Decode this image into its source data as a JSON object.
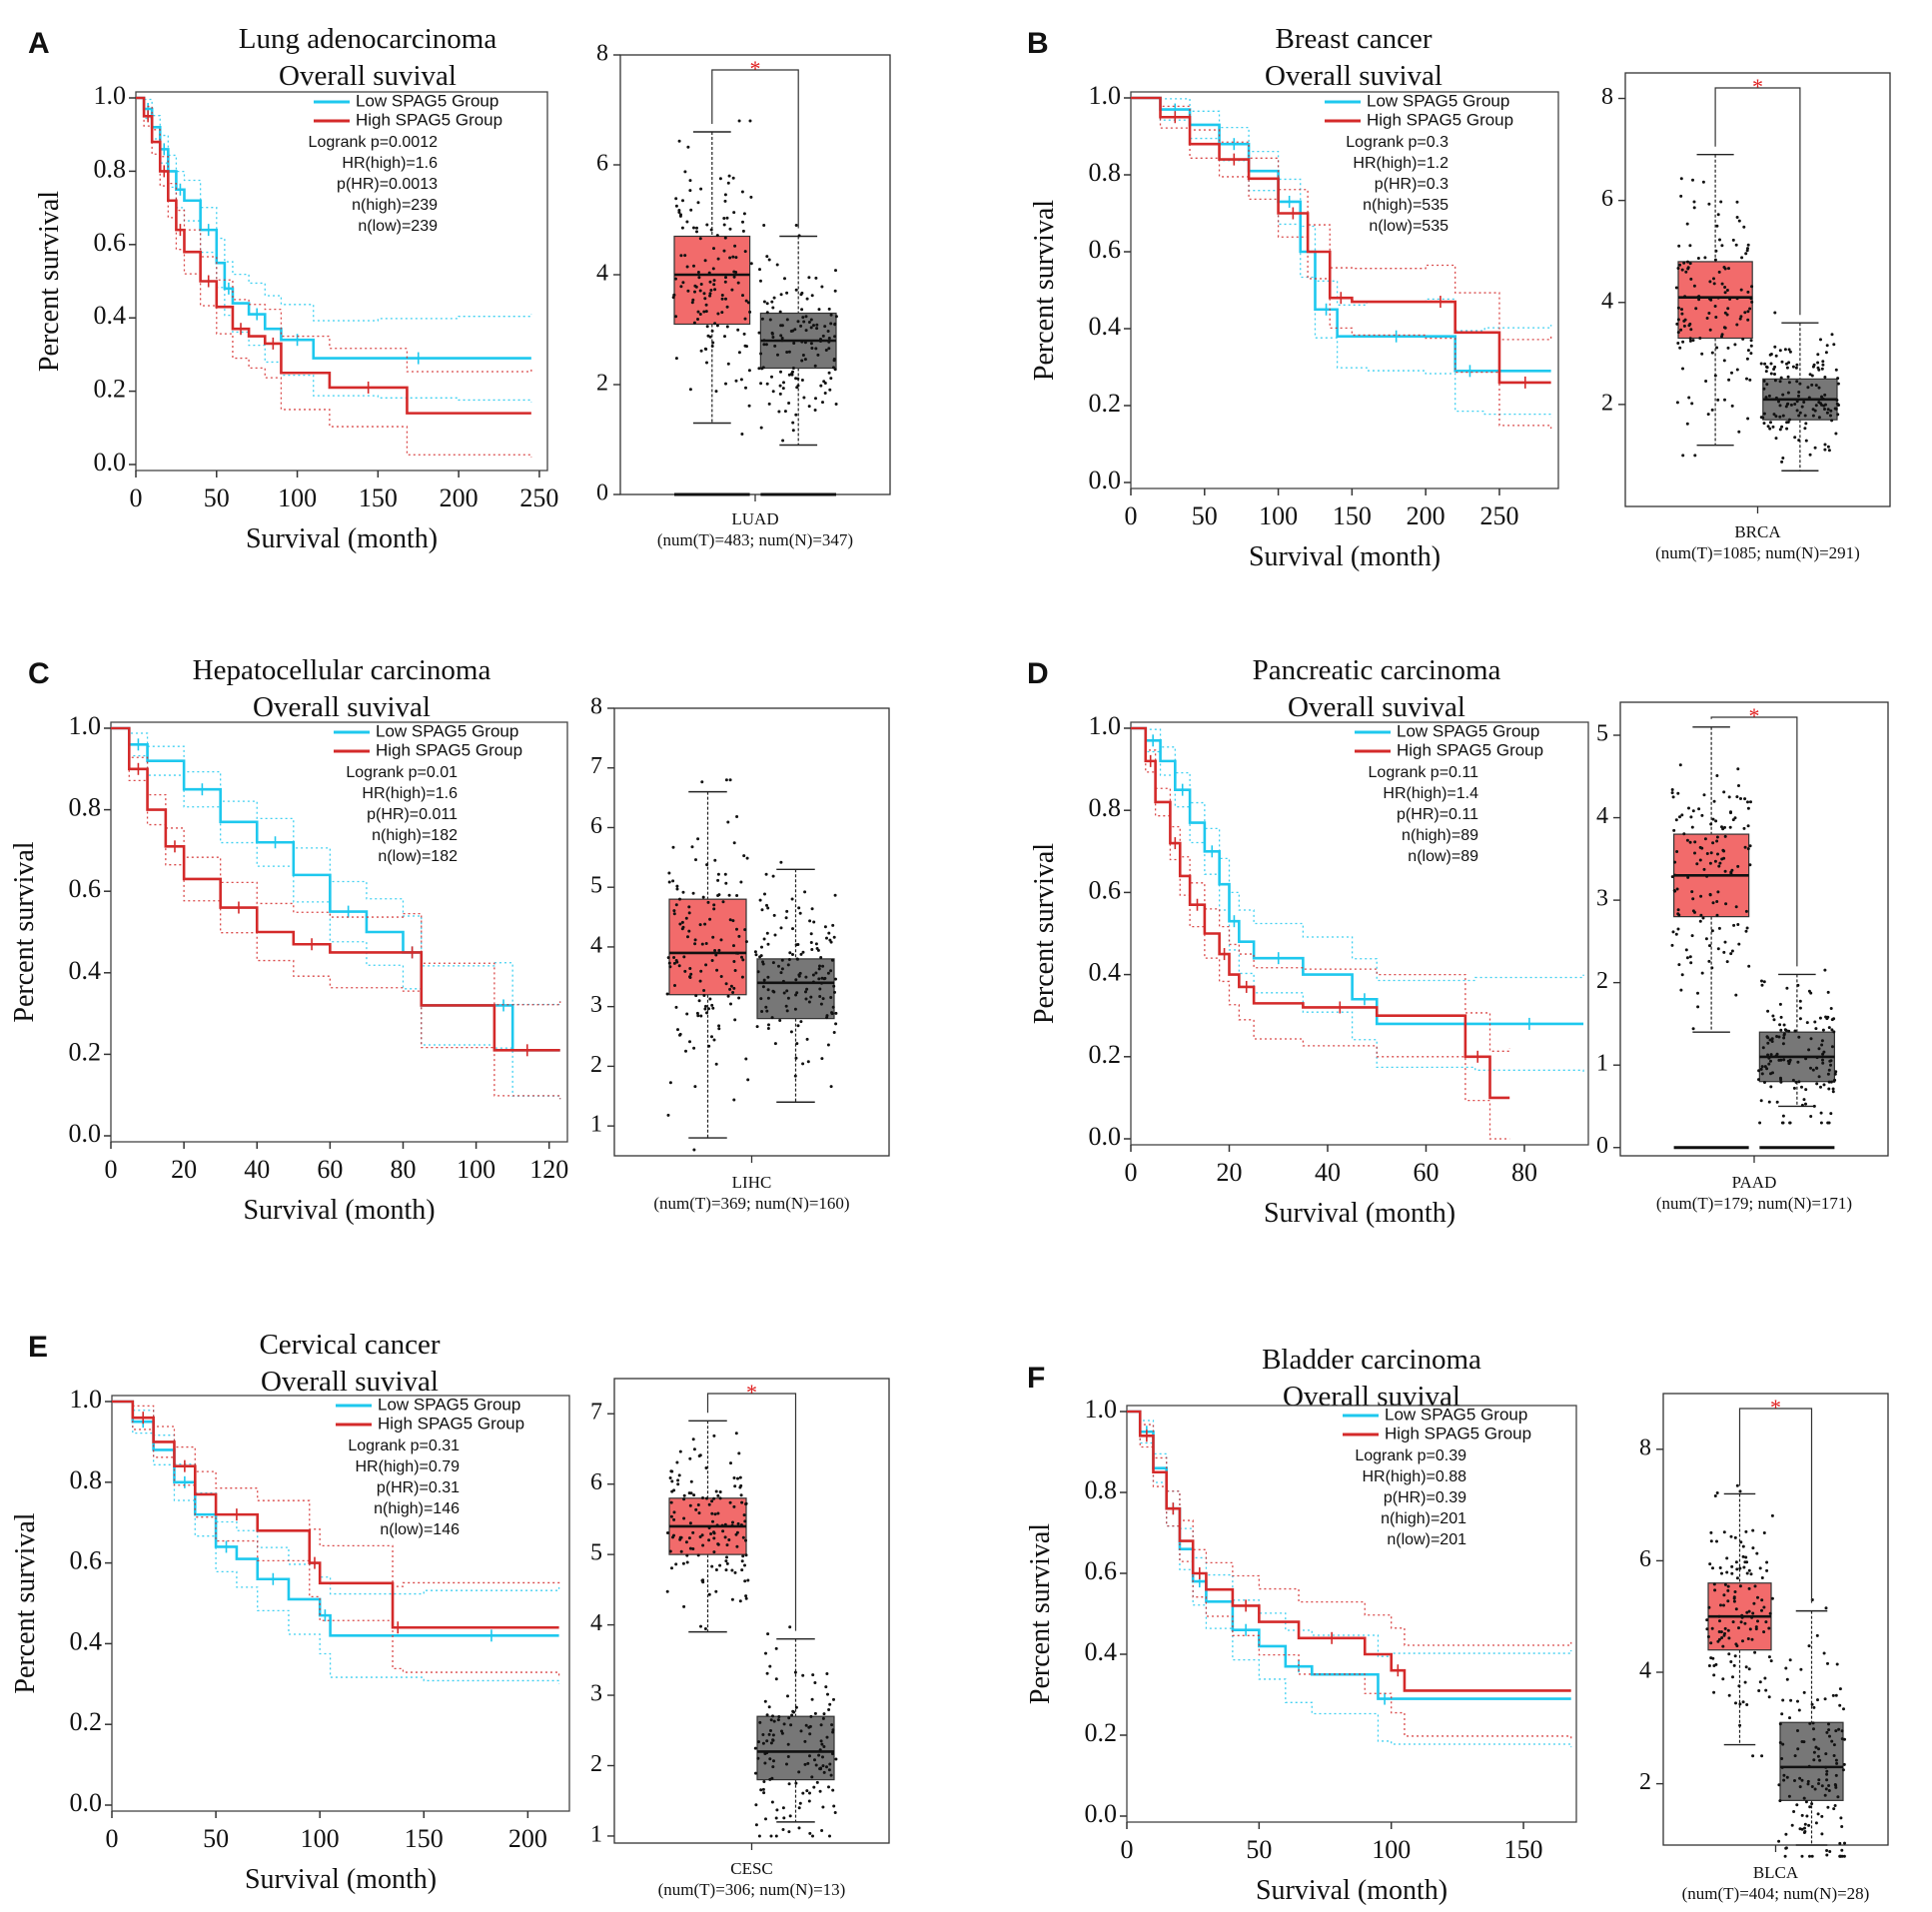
{
  "colors": {
    "low": "#1ec8ee",
    "high": "#d42a2a",
    "tumor_box": "#f26b6b",
    "normal_box": "#777777",
    "star": "#e02020",
    "axis": "#222222"
  },
  "km_labels": {
    "ylabel": "Percent survival",
    "xlabel": "Survival (month)",
    "low_group": "Low SPAG5 Group",
    "high_group": "High SPAG5 Group"
  },
  "chart_data": [
    {
      "panel": "A",
      "type": "line",
      "title_line1": "Lung adenocarcinoma",
      "title_line2": "Overall suvival",
      "xlim": [
        0,
        255
      ],
      "xticks": [
        0,
        50,
        100,
        150,
        200,
        250
      ],
      "ylim": [
        0,
        1.0
      ],
      "yticks": [
        "0.0",
        "0.2",
        "0.4",
        "0.6",
        "0.8",
        "1.0"
      ],
      "stats": [
        "Logrank p=0.0012",
        "HR(high)=1.6",
        "p(HR)=0.0013",
        "n(high)=239",
        "n(low)=239"
      ],
      "series": [
        {
          "group": "low",
          "x": [
            0,
            5,
            10,
            15,
            20,
            25,
            30,
            40,
            50,
            55,
            60,
            70,
            80,
            90,
            110,
            150,
            200,
            245
          ],
          "y": [
            1.0,
            0.97,
            0.92,
            0.86,
            0.8,
            0.75,
            0.72,
            0.64,
            0.55,
            0.48,
            0.44,
            0.41,
            0.37,
            0.34,
            0.29,
            0.29,
            0.29,
            0.29
          ]
        },
        {
          "group": "high",
          "x": [
            0,
            5,
            10,
            15,
            20,
            25,
            30,
            40,
            50,
            60,
            70,
            80,
            90,
            120,
            168,
            245
          ],
          "y": [
            1.0,
            0.95,
            0.88,
            0.8,
            0.72,
            0.64,
            0.58,
            0.5,
            0.43,
            0.37,
            0.35,
            0.33,
            0.25,
            0.21,
            0.14,
            0.14
          ]
        }
      ],
      "box": {
        "cancer": "LUAD",
        "caption": "(num(T)=483; num(N)=347)",
        "ylim": [
          0,
          8
        ],
        "yticks": [
          0,
          2,
          4,
          6,
          8
        ],
        "significant": true,
        "zero_bars": true,
        "tumor": {
          "q1": 3.1,
          "median": 4.0,
          "q3": 4.7,
          "lo": 1.3,
          "hi": 6.6
        },
        "normal": {
          "q1": 2.3,
          "median": 2.8,
          "q3": 3.3,
          "lo": 0.9,
          "hi": 4.7
        }
      }
    },
    {
      "panel": "B",
      "type": "line",
      "title_line1": "Breast cancer",
      "title_line2": "Overall suvival",
      "xlim": [
        0,
        290
      ],
      "xticks": [
        0,
        50,
        100,
        150,
        200,
        250
      ],
      "ylim": [
        0,
        1.0
      ],
      "yticks": [
        "0.0",
        "0.2",
        "0.4",
        "0.6",
        "0.8",
        "1.0"
      ],
      "stats": [
        "Logrank p=0.3",
        "HR(high)=1.2",
        "p(HR)=0.3",
        "n(high)=535",
        "n(low)=535"
      ],
      "series": [
        {
          "group": "low",
          "x": [
            0,
            20,
            40,
            60,
            80,
            100,
            115,
            125,
            140,
            160,
            200,
            220,
            240,
            285
          ],
          "y": [
            1.0,
            0.97,
            0.93,
            0.88,
            0.81,
            0.73,
            0.6,
            0.45,
            0.38,
            0.38,
            0.38,
            0.29,
            0.29,
            0.29
          ]
        },
        {
          "group": "high",
          "x": [
            0,
            20,
            40,
            60,
            80,
            100,
            120,
            135,
            150,
            200,
            220,
            250,
            285
          ],
          "y": [
            1.0,
            0.95,
            0.88,
            0.84,
            0.79,
            0.7,
            0.6,
            0.48,
            0.47,
            0.47,
            0.39,
            0.26,
            0.26
          ]
        }
      ],
      "box": {
        "cancer": "BRCA",
        "caption": "(num(T)=1085; num(N)=291)",
        "ylim": [
          0,
          8.5
        ],
        "yticks": [
          2,
          4,
          6,
          8
        ],
        "significant": true,
        "zero_bars": false,
        "tumor": {
          "q1": 3.3,
          "median": 4.1,
          "q3": 4.8,
          "lo": 1.2,
          "hi": 6.9
        },
        "normal": {
          "q1": 1.7,
          "median": 2.1,
          "q3": 2.5,
          "lo": 0.7,
          "hi": 3.6
        }
      }
    },
    {
      "panel": "C",
      "type": "line",
      "title_line1": "Hepatocellular carcinoma",
      "title_line2": "Overall suvival",
      "xlim": [
        0,
        125
      ],
      "xticks": [
        0,
        20,
        40,
        60,
        80,
        100,
        120
      ],
      "ylim": [
        0,
        1.0
      ],
      "yticks": [
        "0.0",
        "0.2",
        "0.4",
        "0.6",
        "0.8",
        "1.0"
      ],
      "stats": [
        "Logrank p=0.01",
        "HR(high)=1.6",
        "p(HR)=0.011",
        "n(high)=182",
        "n(low)=182"
      ],
      "series": [
        {
          "group": "low",
          "x": [
            0,
            5,
            10,
            20,
            30,
            40,
            50,
            60,
            70,
            80,
            85,
            105,
            110,
            123
          ],
          "y": [
            1.0,
            0.96,
            0.92,
            0.85,
            0.77,
            0.72,
            0.64,
            0.55,
            0.5,
            0.45,
            0.32,
            0.32,
            0.21,
            0.21
          ]
        },
        {
          "group": "high",
          "x": [
            0,
            5,
            10,
            15,
            20,
            30,
            40,
            50,
            60,
            80,
            85,
            105,
            123
          ],
          "y": [
            1.0,
            0.9,
            0.8,
            0.71,
            0.63,
            0.56,
            0.5,
            0.47,
            0.45,
            0.45,
            0.32,
            0.21,
            0.21
          ]
        }
      ],
      "box": {
        "cancer": "LIHC",
        "caption": "(num(T)=369; num(N)=160)",
        "ylim": [
          0.5,
          8
        ],
        "yticks": [
          1,
          2,
          3,
          4,
          5,
          6,
          7,
          8
        ],
        "significant": false,
        "zero_bars": false,
        "tumor": {
          "q1": 3.2,
          "median": 3.9,
          "q3": 4.8,
          "lo": 0.8,
          "hi": 6.6
        },
        "normal": {
          "q1": 2.8,
          "median": 3.4,
          "q3": 3.8,
          "lo": 1.4,
          "hi": 5.3
        }
      }
    },
    {
      "panel": "D",
      "type": "line",
      "title_line1": "Pancreatic carcinoma",
      "title_line2": "Overall suvival",
      "xlim": [
        0,
        93
      ],
      "xticks": [
        0,
        20,
        40,
        60,
        80
      ],
      "ylim": [
        0,
        1.0
      ],
      "yticks": [
        "0.0",
        "0.2",
        "0.4",
        "0.6",
        "0.8",
        "1.0"
      ],
      "stats": [
        "Logrank p=0.11",
        "HR(high)=1.4",
        "p(HR)=0.11",
        "n(high)=89",
        "n(low)=89"
      ],
      "series": [
        {
          "group": "low",
          "x": [
            0,
            3,
            6,
            9,
            12,
            15,
            18,
            20,
            22,
            25,
            35,
            45,
            50,
            70,
            92
          ],
          "y": [
            1.0,
            0.97,
            0.92,
            0.85,
            0.77,
            0.7,
            0.62,
            0.53,
            0.48,
            0.44,
            0.4,
            0.34,
            0.28,
            0.28,
            0.28
          ]
        },
        {
          "group": "high",
          "x": [
            0,
            3,
            5,
            8,
            10,
            12,
            15,
            18,
            20,
            22,
            25,
            35,
            50,
            68,
            73,
            77
          ],
          "y": [
            1.0,
            0.92,
            0.82,
            0.72,
            0.64,
            0.57,
            0.5,
            0.45,
            0.4,
            0.37,
            0.33,
            0.32,
            0.3,
            0.2,
            0.1,
            0.1
          ]
        }
      ],
      "box": {
        "cancer": "PAAD",
        "caption": "(num(T)=179; num(N)=171)",
        "ylim": [
          -0.1,
          5.4
        ],
        "yticks": [
          0,
          1,
          2,
          3,
          4,
          5
        ],
        "significant": true,
        "zero_bars": true,
        "tumor": {
          "q1": 2.8,
          "median": 3.3,
          "q3": 3.8,
          "lo": 1.4,
          "hi": 5.1
        },
        "normal": {
          "q1": 0.8,
          "median": 1.1,
          "q3": 1.4,
          "lo": 0.5,
          "hi": 2.1
        }
      }
    },
    {
      "panel": "E",
      "type": "line",
      "title_line1": "Cervical cancer",
      "title_line2": "Overall suvival",
      "xlim": [
        0,
        220
      ],
      "xticks": [
        0,
        50,
        100,
        150,
        200
      ],
      "ylim": [
        0,
        1.0
      ],
      "yticks": [
        "0.0",
        "0.2",
        "0.4",
        "0.6",
        "0.8",
        "1.0"
      ],
      "stats": [
        "Logrank p=0.31",
        "HR(high)=0.79",
        "p(HR)=0.31",
        "n(high)=146",
        "n(low)=146"
      ],
      "series": [
        {
          "group": "low",
          "x": [
            0,
            10,
            20,
            30,
            40,
            50,
            60,
            70,
            85,
            100,
            105,
            150,
            215
          ],
          "y": [
            1.0,
            0.95,
            0.88,
            0.8,
            0.72,
            0.64,
            0.61,
            0.56,
            0.51,
            0.47,
            0.42,
            0.42,
            0.42
          ]
        },
        {
          "group": "high",
          "x": [
            0,
            10,
            20,
            30,
            40,
            50,
            70,
            95,
            100,
            135,
            140,
            215
          ],
          "y": [
            1.0,
            0.96,
            0.9,
            0.84,
            0.77,
            0.72,
            0.68,
            0.6,
            0.55,
            0.44,
            0.44,
            0.44
          ]
        }
      ],
      "box": {
        "cancer": "CESC",
        "caption": "(num(T)=306; num(N)=13)",
        "ylim": [
          0.9,
          7.5
        ],
        "yticks": [
          1,
          2,
          3,
          4,
          5,
          6,
          7
        ],
        "significant": true,
        "zero_bars": false,
        "tumor": {
          "q1": 5.0,
          "median": 5.4,
          "q3": 5.8,
          "lo": 3.9,
          "hi": 6.9
        },
        "normal": {
          "q1": 1.8,
          "median": 2.2,
          "q3": 2.7,
          "lo": 1.2,
          "hi": 3.8
        }
      }
    },
    {
      "panel": "F",
      "type": "line",
      "title_line1": "Bladder carcinoma",
      "title_line2": "Overall suvival",
      "xlim": [
        0,
        170
      ],
      "xticks": [
        0,
        50,
        100,
        150
      ],
      "ylim": [
        0,
        1.0
      ],
      "yticks": [
        "0.0",
        "0.2",
        "0.4",
        "0.6",
        "0.8",
        "1.0"
      ],
      "stats": [
        "Logrank p=0.39",
        "HR(high)=0.88",
        "p(HR)=0.39",
        "n(high)=201",
        "n(low)=201"
      ],
      "series": [
        {
          "group": "low",
          "x": [
            0,
            5,
            10,
            15,
            20,
            25,
            30,
            40,
            50,
            60,
            70,
            95,
            100,
            168
          ],
          "y": [
            1.0,
            0.95,
            0.86,
            0.76,
            0.66,
            0.58,
            0.53,
            0.46,
            0.42,
            0.37,
            0.35,
            0.29,
            0.29,
            0.29
          ]
        },
        {
          "group": "high",
          "x": [
            0,
            5,
            10,
            15,
            20,
            25,
            30,
            40,
            50,
            65,
            90,
            100,
            105,
            168
          ],
          "y": [
            1.0,
            0.94,
            0.85,
            0.76,
            0.68,
            0.6,
            0.56,
            0.52,
            0.48,
            0.44,
            0.4,
            0.36,
            0.31,
            0.31
          ]
        }
      ],
      "box": {
        "cancer": "BLCA",
        "caption": "(num(T)=404; num(N)=28)",
        "ylim": [
          0.9,
          9
        ],
        "yticks": [
          2,
          4,
          6,
          8
        ],
        "significant": true,
        "zero_bars": false,
        "tumor": {
          "q1": 4.4,
          "median": 5.0,
          "q3": 5.6,
          "lo": 2.7,
          "hi": 7.2
        },
        "normal": {
          "q1": 1.7,
          "median": 2.3,
          "q3": 3.1,
          "lo": 0.9,
          "hi": 5.1
        }
      }
    }
  ]
}
